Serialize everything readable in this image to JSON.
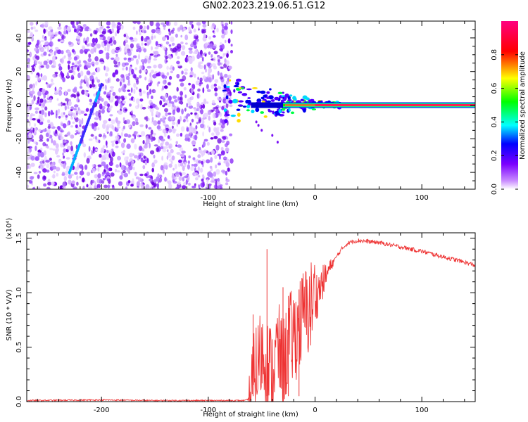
{
  "title": "GN02.2023.219.06.51.G12",
  "chart_data": [
    {
      "type": "heatmap",
      "xlabel": "Height of straight line (km)",
      "ylabel": "Frequency (Hz)",
      "xlim": [
        -270,
        150
      ],
      "ylim": [
        -50,
        50
      ],
      "xticks": [
        -200,
        -100,
        0,
        100
      ],
      "yticks": [
        -40,
        -20,
        0,
        20,
        40
      ],
      "colorbar": {
        "label": "Normalized spectral amplitude",
        "range": [
          0,
          1
        ],
        "ticks": [
          "0.0",
          "0.2",
          "0.4",
          "0.6",
          "0.8"
        ],
        "colormap": [
          "#ffffff",
          "#c98cff",
          "#7b00ff",
          "#0000ff",
          "#00ffff",
          "#00ff00",
          "#ffff00",
          "#ff0000",
          "#ff0080"
        ]
      },
      "features": {
        "noise_region_x": [
          -270,
          -78
        ],
        "diagonal_trace": {
          "x": [
            -230,
            -200
          ],
          "y": [
            -40,
            12
          ]
        },
        "signal_line": {
          "x_start": -75,
          "x_end": 150,
          "y": 0
        }
      }
    },
    {
      "type": "line",
      "xlabel": "Height of straight line (km)",
      "ylabel": "SNR (10 * V/V)",
      "y_multiplier": "(x10⁴)",
      "xlim": [
        -270,
        150
      ],
      "ylim": [
        0,
        1.55
      ],
      "xticks": [
        -200,
        -100,
        0,
        100
      ],
      "yticks": [
        "0.0",
        "0.5",
        "1.0",
        "1.5"
      ],
      "color": "#ee3333",
      "series": [
        {
          "x": [
            -270,
            -200,
            -150,
            -100,
            -65,
            -60,
            -55,
            -50,
            -45,
            -40,
            -35,
            -30,
            -25,
            -20,
            -15,
            -10,
            -5,
            0,
            5,
            10,
            15,
            20,
            25,
            30,
            35,
            40,
            50,
            60,
            80,
            100,
            120,
            140,
            150
          ],
          "y": [
            0.01,
            0.015,
            0.01,
            0.01,
            0.01,
            0.04,
            0.3,
            0.45,
            0.35,
            0.25,
            0.5,
            0.3,
            0.55,
            0.6,
            0.7,
            0.8,
            0.85,
            0.95,
            1.05,
            1.15,
            1.25,
            1.33,
            1.4,
            1.45,
            1.47,
            1.48,
            1.47,
            1.46,
            1.42,
            1.38,
            1.33,
            1.28,
            1.25
          ]
        }
      ],
      "spikes": [
        {
          "x": -58,
          "y": 0.8
        },
        {
          "x": -45,
          "y": 1.4
        },
        {
          "x": -30,
          "y": 1.05
        },
        {
          "x": -25,
          "y": 0.97
        },
        {
          "x": -15,
          "y": 1.03
        }
      ]
    }
  ]
}
